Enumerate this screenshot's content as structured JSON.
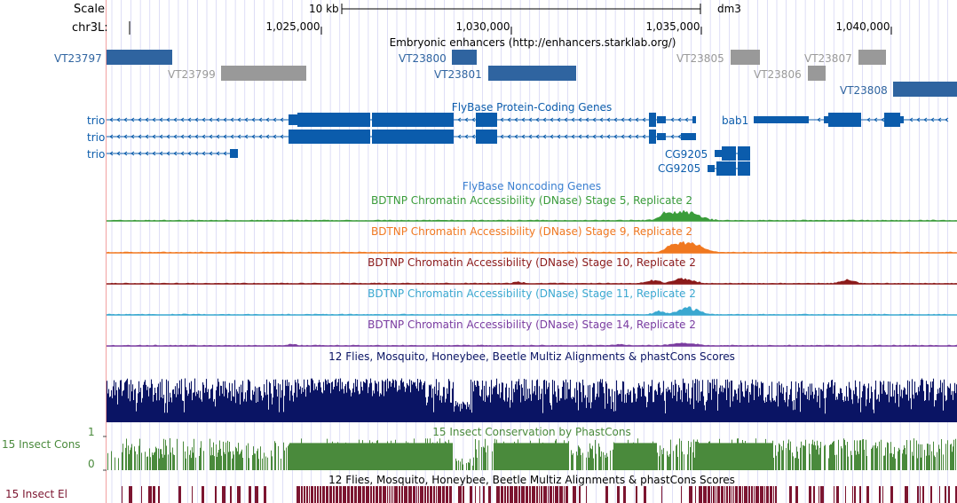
{
  "ruler": {
    "scale_label": "Scale",
    "scale_value": "10 kb",
    "assembly": "dm3",
    "chrom_label": "chr3L:",
    "ticks": [
      "1,025,000",
      "1,030,000",
      "1,035,000",
      "1,040,000"
    ]
  },
  "enhancers": {
    "title": "Embryonic enhancers (http://enhancers.starklab.org/)",
    "items": [
      {
        "name": "VT23797",
        "status": "active"
      },
      {
        "name": "VT23799",
        "status": "inactive"
      },
      {
        "name": "VT23800",
        "status": "active"
      },
      {
        "name": "VT23801",
        "status": "active"
      },
      {
        "name": "VT23805",
        "status": "inactive"
      },
      {
        "name": "VT23806",
        "status": "inactive"
      },
      {
        "name": "VT23807",
        "status": "inactive"
      },
      {
        "name": "VT23808",
        "status": "active"
      }
    ]
  },
  "genes": {
    "title": "FlyBase Protein-Coding Genes",
    "labels": [
      "trio",
      "trio",
      "trio",
      "bab1",
      "CG9205",
      "CG9205"
    ]
  },
  "noncoding": {
    "title": "FlyBase Noncoding Genes"
  },
  "dnase": [
    {
      "title": "BDTNP Chromatin Accessibility (DNase) Stage 5, Replicate 2",
      "color": "#3a9c3a"
    },
    {
      "title": "BDTNP Chromatin Accessibility (DNase) Stage 9, Replicate 2",
      "color": "#f07820"
    },
    {
      "title": "BDTNP Chromatin Accessibility (DNase) Stage 10, Replicate 2",
      "color": "#8b1a1a"
    },
    {
      "title": "BDTNP Chromatin Accessibility (DNase) Stage 11, Replicate 2",
      "color": "#3aa8d0"
    },
    {
      "title": "BDTNP Chromatin Accessibility (DNase) Stage 14, Replicate 2",
      "color": "#7a3ca0"
    }
  ],
  "multiz": {
    "title": "12 Flies, Mosquito, Honeybee, Beetle Multiz Alignments & phastCons Scores"
  },
  "phastcons": {
    "title": "15 Insect Conservation by PhastCons",
    "label": "15 Insect Cons",
    "scale_max": "1",
    "scale_min": "0"
  },
  "elements": {
    "title": "12 Flies, Mosquito, Honeybee, Beetle Multiz Alignments & phastCons Scores",
    "label": "15 Insect El"
  },
  "colors": {
    "active": "#2f64a0",
    "inactive": "#999999",
    "gene": "#0b5cac",
    "multiz": "#0a1464",
    "cons": "#4a8a3c",
    "elements": "#7c1530",
    "grid": "#c8c8f0",
    "side_border": "#f2a0a0"
  }
}
